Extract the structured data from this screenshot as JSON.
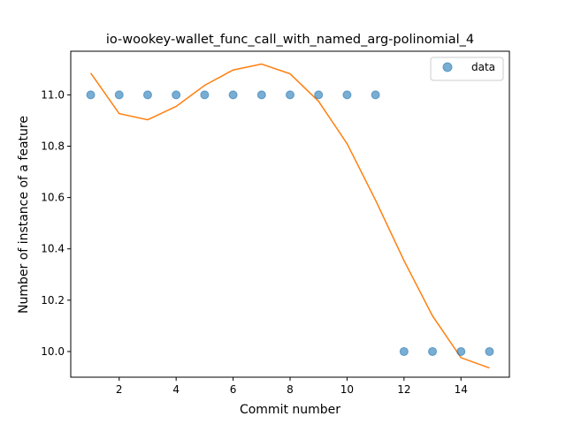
{
  "chart_data": {
    "type": "scatter",
    "title": "io-wookey-wallet_func_call_with_named_arg-polinomial_4",
    "xlabel": "Commit number",
    "ylabel": "Number of instance of a feature",
    "xlim": [
      0.3,
      15.7
    ],
    "ylim": [
      9.9,
      11.17
    ],
    "xticks": [
      2,
      4,
      6,
      8,
      10,
      12,
      14
    ],
    "yticks": [
      10.0,
      10.2,
      10.4,
      10.6,
      10.8,
      11.0
    ],
    "grid": false,
    "legend_placement": "top-right",
    "series": [
      {
        "name": "data",
        "kind": "scatter",
        "color": "#1f77b4",
        "x": [
          1,
          2,
          3,
          4,
          5,
          6,
          7,
          8,
          9,
          10,
          11,
          12,
          13,
          14,
          15
        ],
        "y": [
          11,
          11,
          11,
          11,
          11,
          11,
          11,
          11,
          11,
          11,
          11,
          10,
          10,
          10,
          10
        ]
      },
      {
        "kind": "line",
        "color": "#ff7f0e",
        "x": [
          1,
          2,
          3,
          4,
          5,
          6,
          7,
          8,
          9,
          10,
          11,
          12,
          13,
          14,
          15
        ],
        "y": [
          11.085,
          10.927,
          10.903,
          10.955,
          11.037,
          11.097,
          11.12,
          11.082,
          10.975,
          10.81,
          10.59,
          10.354,
          10.139,
          9.976,
          9.936
        ]
      }
    ]
  }
}
